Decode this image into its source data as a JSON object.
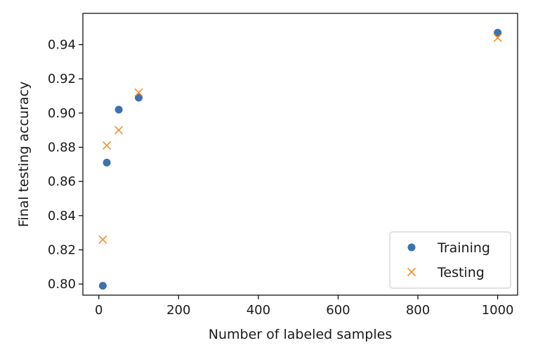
{
  "chart_data": {
    "type": "scatter",
    "title": "",
    "xlabel": "Number of labeled samples",
    "ylabel": "Final testing accuracy",
    "xlim": [
      -40,
      1050
    ],
    "ylim": [
      0.7935,
      0.9583
    ],
    "xticks": [
      0,
      200,
      400,
      600,
      800,
      1000
    ],
    "xtick_labels": [
      "0",
      "200",
      "400",
      "600",
      "800",
      "1000"
    ],
    "yticks": [
      0.8,
      0.82,
      0.84,
      0.86,
      0.88,
      0.9,
      0.92,
      0.94
    ],
    "ytick_labels": [
      "0.80",
      "0.82",
      "0.84",
      "0.86",
      "0.88",
      "0.90",
      "0.92",
      "0.94"
    ],
    "grid": false,
    "legend_position": "lower-right",
    "series": [
      {
        "name": "Training",
        "marker": "circle",
        "color": "#3b72b0",
        "points": [
          {
            "x": 10,
            "y": 0.799
          },
          {
            "x": 20,
            "y": 0.871
          },
          {
            "x": 50,
            "y": 0.902
          },
          {
            "x": 100,
            "y": 0.909
          },
          {
            "x": 1000,
            "y": 0.947
          }
        ]
      },
      {
        "name": "Testing",
        "marker": "x",
        "color": "#f28e2b",
        "points": [
          {
            "x": 10,
            "y": 0.826
          },
          {
            "x": 20,
            "y": 0.881
          },
          {
            "x": 50,
            "y": 0.89
          },
          {
            "x": 100,
            "y": 0.912
          },
          {
            "x": 1000,
            "y": 0.944
          }
        ]
      }
    ]
  }
}
